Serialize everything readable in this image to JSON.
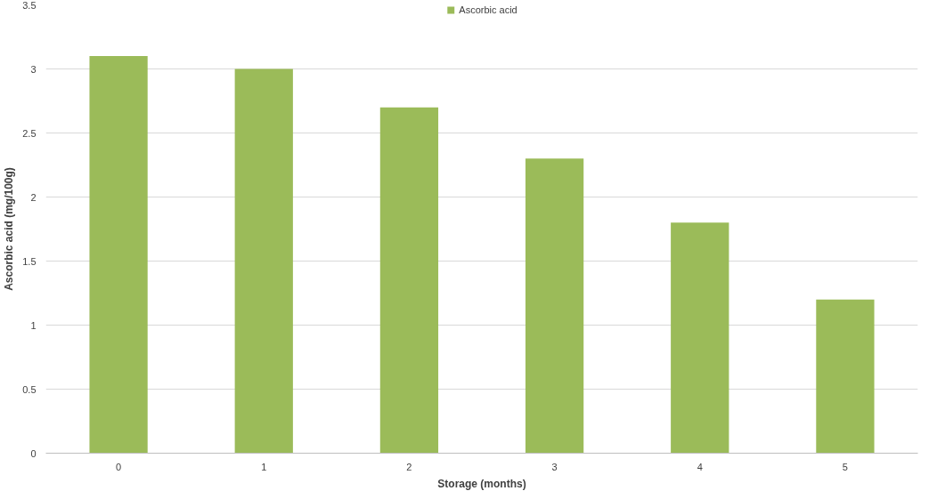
{
  "chart_data": {
    "type": "bar",
    "categories": [
      "0",
      "1",
      "2",
      "3",
      "4",
      "5"
    ],
    "series": [
      {
        "name": "Ascorbic acid",
        "color": "#9bbb59",
        "values": [
          3.1,
          3.0,
          2.7,
          2.3,
          1.8,
          1.2
        ]
      }
    ],
    "xlabel": "Storage (months)",
    "ylabel": "Ascorbic acid (mg/100g)",
    "ylim": [
      0,
      3.5
    ],
    "yticks": [
      0,
      0.5,
      1,
      1.5,
      2,
      2.5,
      3,
      3.5
    ],
    "grid": "y",
    "legend": "top"
  }
}
